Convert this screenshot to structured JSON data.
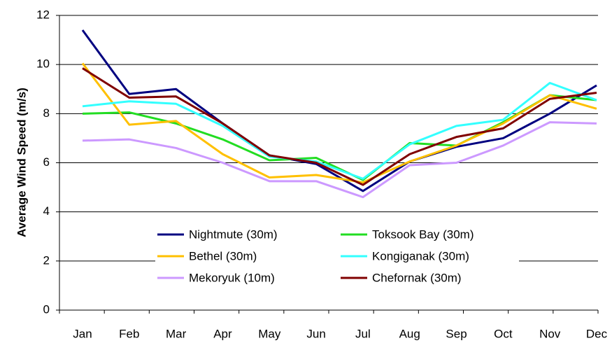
{
  "chart_data": {
    "type": "line",
    "y_label": "Average Wind Speed (m/s)",
    "categories": [
      "Jan",
      "Feb",
      "Mar",
      "Apr",
      "May",
      "Jun",
      "Jul",
      "Aug",
      "Sep",
      "Oct",
      "Nov",
      "Dec"
    ],
    "ylim": [
      0,
      12
    ],
    "yticks": [
      0,
      2,
      4,
      6,
      8,
      10,
      12
    ],
    "grid": true,
    "series": [
      {
        "name": "Nightmute (30m)",
        "color": "#000080",
        "values": [
          11.4,
          8.8,
          9.0,
          7.6,
          6.3,
          5.95,
          4.85,
          6.05,
          6.65,
          7.0,
          8.0,
          9.15
        ]
      },
      {
        "name": "Toksook Bay (30m)",
        "color": "#22dd22",
        "values": [
          8.0,
          8.05,
          7.6,
          6.95,
          6.1,
          6.2,
          5.3,
          6.8,
          6.7,
          7.65,
          8.75,
          8.55
        ]
      },
      {
        "name": "Bethel (30m)",
        "color": "#ffc000",
        "values": [
          10.05,
          7.55,
          7.7,
          6.35,
          5.4,
          5.5,
          5.2,
          6.05,
          6.7,
          7.6,
          8.75,
          8.2
        ]
      },
      {
        "name": "Kongiganak (30m)",
        "color": "#33ffff",
        "values": [
          8.3,
          8.5,
          8.4,
          7.5,
          6.25,
          6.05,
          5.35,
          6.75,
          7.5,
          7.75,
          9.25,
          8.55
        ]
      },
      {
        "name": "Mekoryuk (10m)",
        "color": "#cc99ff",
        "values": [
          6.9,
          6.95,
          6.6,
          6.0,
          5.25,
          5.25,
          4.6,
          5.9,
          6.0,
          6.7,
          7.65,
          7.6
        ]
      },
      {
        "name": "Chefornak (30m)",
        "color": "#800000",
        "values": [
          9.85,
          8.65,
          8.7,
          7.6,
          6.3,
          6.0,
          5.1,
          6.35,
          7.05,
          7.4,
          8.6,
          8.85
        ]
      }
    ],
    "legend": "lower center"
  }
}
